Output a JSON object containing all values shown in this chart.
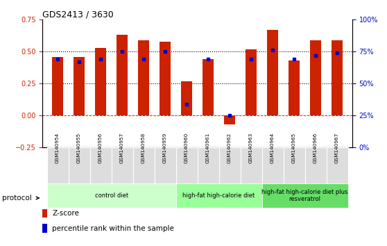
{
  "title": "GDS2413 / 3630",
  "samples": [
    "GSM140954",
    "GSM140955",
    "GSM140956",
    "GSM140957",
    "GSM140958",
    "GSM140959",
    "GSM140960",
    "GSM140961",
    "GSM140962",
    "GSM140963",
    "GSM140964",
    "GSM140965",
    "GSM140966",
    "GSM140967"
  ],
  "z_scores": [
    0.46,
    0.46,
    0.53,
    0.63,
    0.59,
    0.58,
    0.27,
    0.44,
    -0.07,
    0.52,
    0.67,
    0.43,
    0.59,
    0.59
  ],
  "percentile_ranks_pct": [
    69,
    67,
    69,
    75,
    69,
    75,
    34,
    69,
    25,
    69,
    76,
    69,
    72,
    74
  ],
  "ylim": [
    -0.25,
    0.75
  ],
  "yticks_left": [
    -0.25,
    0.0,
    0.25,
    0.5,
    0.75
  ],
  "yticks_right": [
    0,
    25,
    50,
    75,
    100
  ],
  "dotted_lines": [
    0.25,
    0.5
  ],
  "bar_color": "#cc2200",
  "dot_color": "#0000cc",
  "zero_line_color": "#cc2200",
  "groups": [
    {
      "label": "control diet",
      "start": 0,
      "end": 5,
      "color": "#ccffcc"
    },
    {
      "label": "high-fat high-calorie diet",
      "start": 6,
      "end": 9,
      "color": "#99ff99"
    },
    {
      "label": "high-fat high-calorie diet plus\nresveratrol",
      "start": 10,
      "end": 13,
      "color": "#66dd66"
    }
  ],
  "bar_width": 0.5,
  "background_color": "#ffffff",
  "plot_bg_color": "#ffffff",
  "tick_label_color_left": "#cc2200",
  "tick_label_color_right": "#0000cc",
  "protocol_label": "protocol",
  "legend_zscore": "Z-score",
  "legend_percentile": "percentile rank within the sample"
}
